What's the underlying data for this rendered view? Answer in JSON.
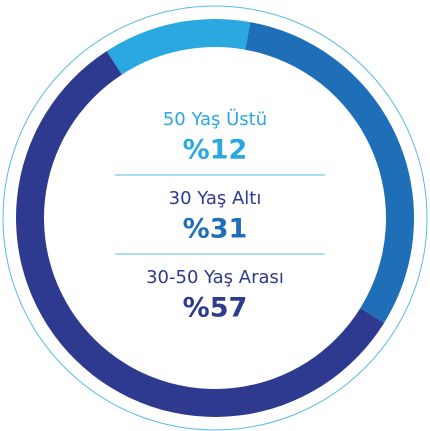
{
  "chart_data": {
    "type": "donut",
    "categories": [
      "50 Yaş Üstü",
      "30 Yaş Altı",
      "30-50 Yaş Arası"
    ],
    "values": [
      12,
      31,
      57
    ],
    "value_labels": [
      "%12",
      "%31",
      "%57"
    ],
    "colors": [
      "#29a9e0",
      "#1f6fb8",
      "#2e3a8f"
    ]
  }
}
